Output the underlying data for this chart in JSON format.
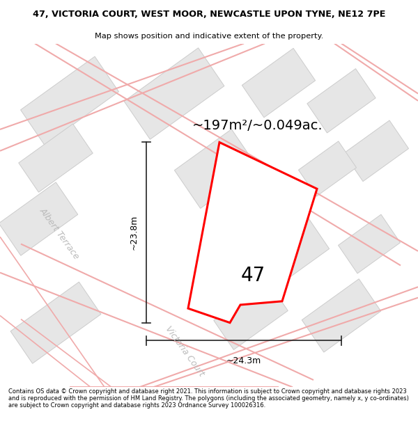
{
  "title_line1": "47, VICTORIA COURT, WEST MOOR, NEWCASTLE UPON TYNE, NE12 7PE",
  "title_line2": "Map shows position and indicative extent of the property.",
  "area_label": "~197m²/~0.049ac.",
  "property_number": "47",
  "dim_vertical": "~23.8m",
  "dim_horizontal": "~24.3m",
  "street1": "Albert Terrace",
  "street2": "Victoria Court",
  "footer_text": "Contains OS data © Crown copyright and database right 2021. This information is subject to Crown copyright and database rights 2023 and is reproduced with the permission of HM Land Registry. The polygons (including the associated geometry, namely x, y co-ordinates) are subject to Crown copyright and database rights 2023 Ordnance Survey 100026316.",
  "map_bg": "#f7f7f7",
  "property_poly_color": "#ff0000",
  "road_outline_color": "#f0aaaa",
  "building_fill": "#e6e6e6",
  "building_edge": "#cccccc",
  "dim_line_color": "#222222",
  "street_label_color": "#bbbbbb",
  "title_fontsize": 9.2,
  "subtitle_fontsize": 8.2,
  "area_fontsize": 14,
  "number_fontsize": 20,
  "dim_fontsize": 9,
  "street_fontsize": 9,
  "footer_fontsize": 6.0
}
